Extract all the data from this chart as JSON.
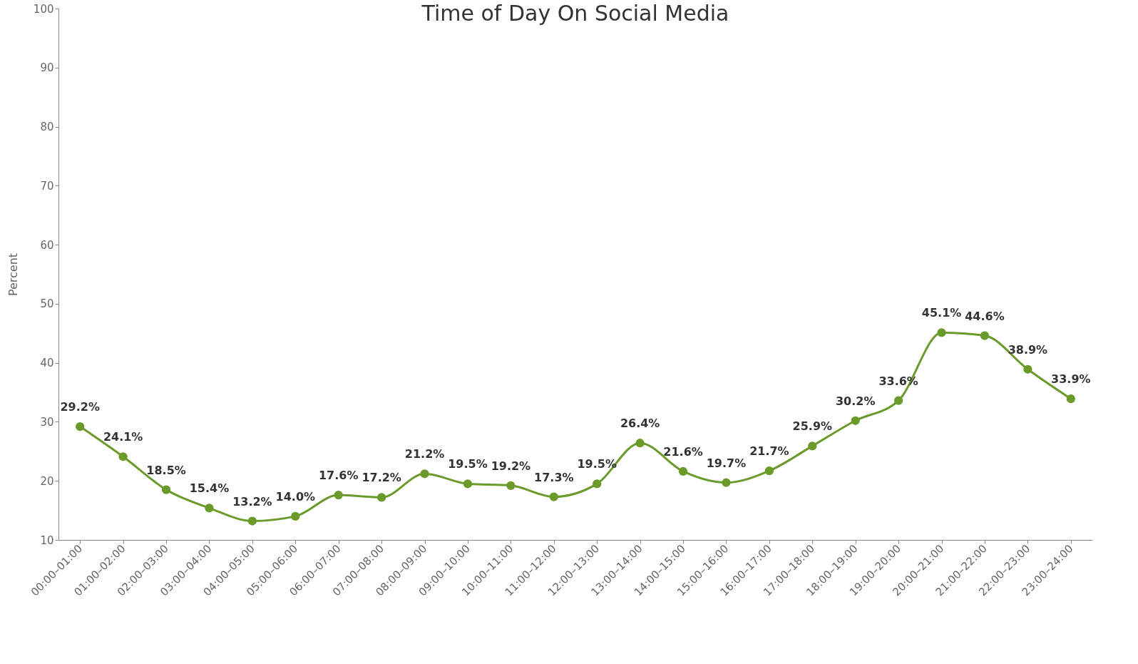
{
  "chart_data": {
    "type": "line",
    "title": "Time of Day On Social Media",
    "ylabel": "Percent",
    "categories": [
      "00:00–01:00",
      "01:00–02:00",
      "02:00–03:00",
      "03:00–04:00",
      "04:00–05:00",
      "05:00–06:00",
      "06:00–07:00",
      "07:00–08:00",
      "08:00–09:00",
      "09:00–10:00",
      "10:00–11:00",
      "11:00–12:00",
      "12:00–13:00",
      "13:00–14:00",
      "14:00–15:00",
      "15:00–16:00",
      "16:00–17:00",
      "17:00–18:00",
      "18:00–19:00",
      "19:00–20:00",
      "20:00–21:00",
      "21:00–22:00",
      "22:00–23:00",
      "23:00–24:00"
    ],
    "series": [
      {
        "color": "#6a9a2a",
        "values": [
          29.2,
          24.1,
          18.5,
          15.4,
          13.2,
          14.0,
          17.6,
          17.2,
          21.2,
          19.5,
          19.2,
          17.3,
          19.5,
          26.4,
          21.6,
          19.7,
          21.7,
          25.9,
          30.2,
          33.6,
          45.1,
          44.6,
          38.9,
          33.9
        ],
        "value_labels": [
          "29.2%",
          "24.1%",
          "18.5%",
          "15.4%",
          "13.2%",
          "14.0%",
          "17.6%",
          "17.2%",
          "21.2%",
          "19.5%",
          "19.2%",
          "17.3%",
          "19.5%",
          "26.4%",
          "21.6%",
          "19.7%",
          "21.7%",
          "25.9%",
          "30.2%",
          "33.6%",
          "45.1%",
          "44.6%",
          "38.9%",
          "33.9%"
        ]
      }
    ],
    "ylim": [
      10,
      100
    ],
    "yticks": [
      10,
      20,
      30,
      40,
      50,
      60,
      70,
      80,
      90,
      100
    ],
    "grid": false,
    "marker": "circle",
    "line_style": "solid"
  }
}
